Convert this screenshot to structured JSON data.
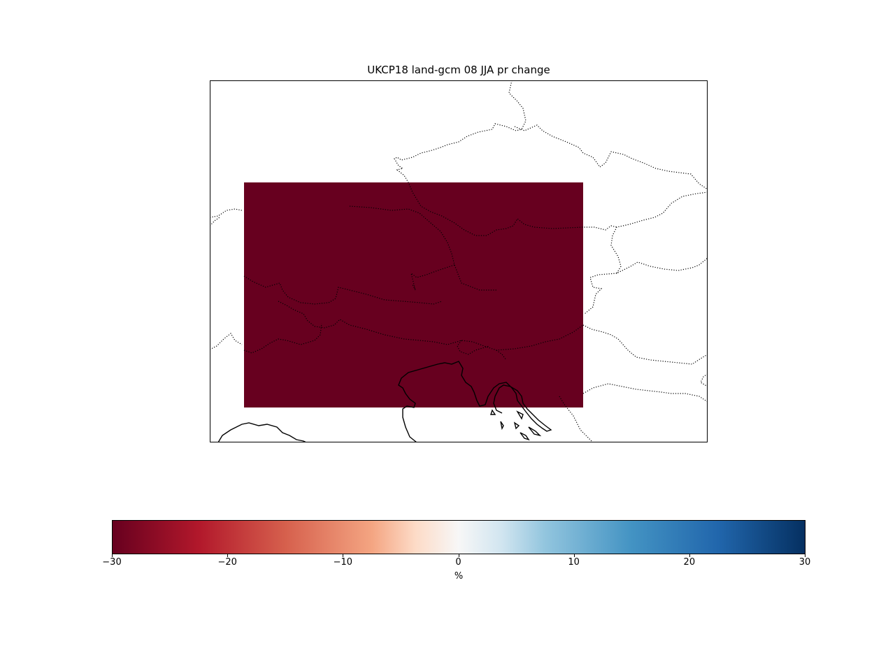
{
  "figure": {
    "title": "UKCP18 land-gcm 08 JJA pr change"
  },
  "map": {
    "data_cell": {
      "value": -30,
      "color": "#67001f"
    },
    "features": [
      "coastline",
      "country-borders"
    ]
  },
  "colorbar": {
    "label": "%",
    "colormap": "RdBu",
    "range": [
      -30,
      30
    ],
    "ticks": [
      "−30",
      "−20",
      "−10",
      "0",
      "10",
      "20",
      "30"
    ],
    "tick_values": [
      -30,
      -20,
      -10,
      0,
      10,
      20,
      30
    ]
  }
}
